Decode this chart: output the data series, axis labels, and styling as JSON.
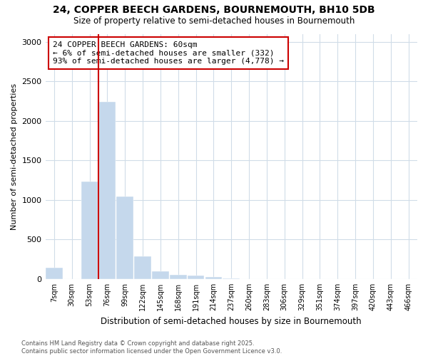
{
  "title_line1": "24, COPPER BEECH GARDENS, BOURNEMOUTH, BH10 5DB",
  "title_line2": "Size of property relative to semi-detached houses in Bournemouth",
  "xlabel": "Distribution of semi-detached houses by size in Bournemouth",
  "ylabel": "Number of semi-detached properties",
  "categories": [
    "7sqm",
    "30sqm",
    "53sqm",
    "76sqm",
    "99sqm",
    "122sqm",
    "145sqm",
    "168sqm",
    "191sqm",
    "214sqm",
    "237sqm",
    "260sqm",
    "283sqm",
    "306sqm",
    "329sqm",
    "351sqm",
    "374sqm",
    "397sqm",
    "420sqm",
    "443sqm",
    "466sqm"
  ],
  "values": [
    145,
    0,
    1230,
    2240,
    1040,
    285,
    100,
    55,
    45,
    25,
    5,
    0,
    0,
    0,
    0,
    0,
    0,
    0,
    0,
    0,
    0
  ],
  "bar_color": "#c5d8ec",
  "bar_edgecolor": "#c5d8ec",
  "vline_color": "#cc0000",
  "vline_index": 2,
  "annotation_text": "24 COPPER BEECH GARDENS: 60sqm\n← 6% of semi-detached houses are smaller (332)\n93% of semi-detached houses are larger (4,778) →",
  "annotation_box_edgecolor": "#cc0000",
  "ylim": [
    0,
    3100
  ],
  "background_color": "#ffffff",
  "grid_color": "#d0dce8",
  "footnote": "Contains HM Land Registry data © Crown copyright and database right 2025.\nContains public sector information licensed under the Open Government Licence v3.0."
}
